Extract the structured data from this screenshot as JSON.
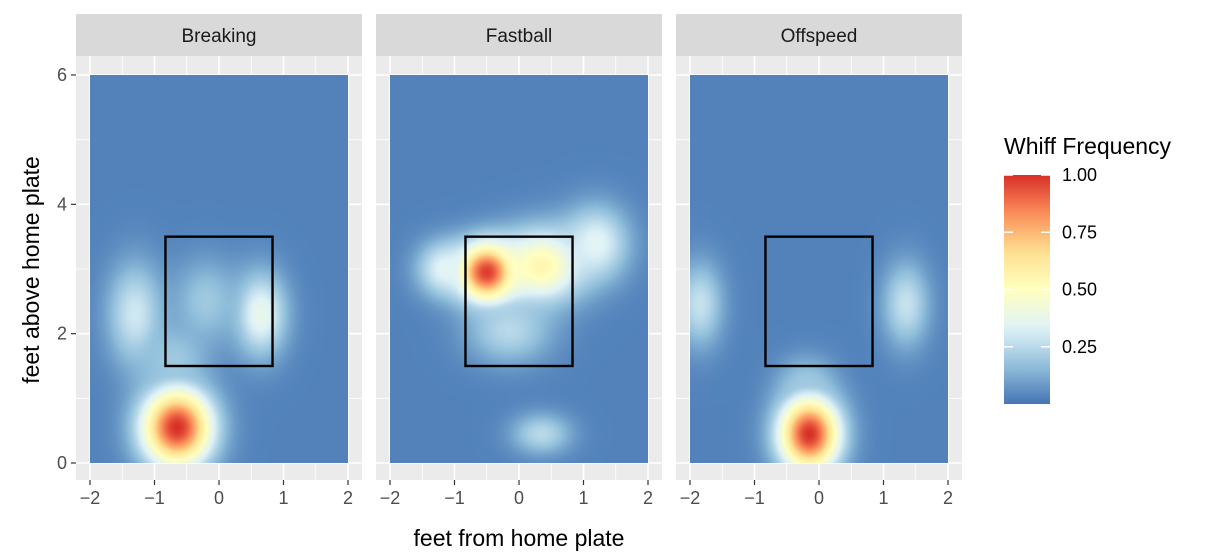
{
  "chart_data": {
    "type": "heatmap",
    "x": {
      "label": "feet from home plate",
      "lim": [
        -2,
        2
      ],
      "ticks": [
        -2,
        -1,
        0,
        1,
        2
      ],
      "tick_labels": [
        "−2",
        "−1",
        "0",
        "1",
        "2"
      ]
    },
    "y": {
      "label": "feet above home plate",
      "lim": [
        0,
        6
      ],
      "ticks": [
        0,
        2,
        4,
        6
      ],
      "tick_labels": [
        "0",
        "2",
        "4",
        "6"
      ]
    },
    "fill": {
      "label": "Whiff Frequency",
      "breaks": [
        0.25,
        0.5,
        0.75,
        1.0
      ],
      "break_labels": [
        "0.25",
        "0.50",
        "0.75",
        "1.00"
      ],
      "range": [
        0,
        1
      ],
      "palette": [
        "#4575b4",
        "#91bfdb",
        "#e0f3f8",
        "#ffffbf",
        "#fee090",
        "#fc8d59",
        "#d73027"
      ]
    },
    "strike_zone": {
      "x": [
        -0.83,
        0.83
      ],
      "y": [
        1.5,
        3.5
      ]
    },
    "grid": true,
    "legend_position": "right",
    "panels": [
      {
        "name": "Breaking",
        "base": 0.03,
        "hotspots": [
          {
            "x": -0.65,
            "y": 0.55,
            "value": 1.0,
            "sx": 0.38,
            "sy": 0.42
          },
          {
            "x": -1.3,
            "y": 2.3,
            "value": 0.3,
            "sx": 0.3,
            "sy": 0.55
          },
          {
            "x": 0.65,
            "y": 2.3,
            "value": 0.38,
            "sx": 0.28,
            "sy": 0.45
          },
          {
            "x": -0.2,
            "y": 2.5,
            "value": 0.2,
            "sx": 0.35,
            "sy": 0.45
          },
          {
            "x": -0.7,
            "y": 1.6,
            "value": 0.2,
            "sx": 0.35,
            "sy": 0.35
          }
        ]
      },
      {
        "name": "Fastball",
        "base": 0.03,
        "hotspots": [
          {
            "x": -0.5,
            "y": 2.95,
            "value": 0.98,
            "sx": 0.32,
            "sy": 0.32
          },
          {
            "x": 0.35,
            "y": 3.05,
            "value": 0.55,
            "sx": 0.45,
            "sy": 0.4
          },
          {
            "x": 1.2,
            "y": 3.4,
            "value": 0.35,
            "sx": 0.35,
            "sy": 0.4
          },
          {
            "x": -1.15,
            "y": 3.0,
            "value": 0.35,
            "sx": 0.3,
            "sy": 0.3
          },
          {
            "x": -0.15,
            "y": 2.05,
            "value": 0.25,
            "sx": 0.45,
            "sy": 0.35
          },
          {
            "x": 0.35,
            "y": 0.45,
            "value": 0.25,
            "sx": 0.32,
            "sy": 0.22
          }
        ]
      },
      {
        "name": "Offspeed",
        "base": 0.03,
        "hotspots": [
          {
            "x": -0.15,
            "y": 0.45,
            "value": 1.0,
            "sx": 0.33,
            "sy": 0.4
          },
          {
            "x": -1.85,
            "y": 2.45,
            "value": 0.28,
            "sx": 0.25,
            "sy": 0.45
          },
          {
            "x": 1.35,
            "y": 2.45,
            "value": 0.28,
            "sx": 0.25,
            "sy": 0.45
          },
          {
            "x": -0.2,
            "y": 1.2,
            "value": 0.2,
            "sx": 0.3,
            "sy": 0.3
          }
        ]
      }
    ]
  }
}
